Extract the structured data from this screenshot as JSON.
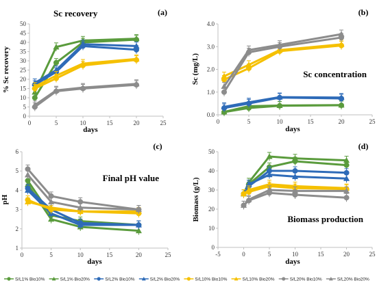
{
  "colors": {
    "green": "#5a9b3c",
    "blue": "#2e6bb8",
    "yellow": "#f5c000",
    "gray": "#8c8c8c",
    "axis": "#bfbfbf"
  },
  "legend": [
    {
      "name": "S/L1% Bio10%",
      "color": "green",
      "marker": "circle"
    },
    {
      "name": "S/L1% Bio20%",
      "color": "green",
      "marker": "triangle"
    },
    {
      "name": "S/L2% Bio10%",
      "color": "blue",
      "marker": "circle"
    },
    {
      "name": "S/L2% Bio20%",
      "color": "blue",
      "marker": "triangle"
    },
    {
      "name": "S/L10% Bio10%",
      "color": "yellow",
      "marker": "circle"
    },
    {
      "name": "S/L10% Bio20%",
      "color": "yellow",
      "marker": "triangle"
    },
    {
      "name": "S/L20% Bio10%",
      "color": "gray",
      "marker": "circle"
    },
    {
      "name": "S/L20% Bio20%",
      "color": "gray",
      "marker": "triangle"
    }
  ],
  "chart_data": [
    {
      "type": "line",
      "panel": "(a)",
      "title": "Sc recovery",
      "xlabel": "days",
      "ylabel": "% Sc recovery",
      "xlim": [
        0,
        25
      ],
      "ylim": [
        0,
        50
      ],
      "xticks": [
        0,
        5,
        10,
        15,
        20,
        25
      ],
      "yticks": [
        0,
        5,
        10,
        15,
        20,
        25,
        30,
        35,
        40,
        45,
        50
      ],
      "x": [
        1,
        5,
        10,
        20
      ],
      "series": [
        {
          "name": "S/L1% Bio10%",
          "values": [
            10,
            29,
            40,
            41.5
          ]
        },
        {
          "name": "S/L1% Bio20%",
          "values": [
            13,
            37.5,
            41,
            42
          ]
        },
        {
          "name": "S/L2% Bio10%",
          "values": [
            17,
            24,
            38,
            36
          ]
        },
        {
          "name": "S/L2% Bio20%",
          "values": [
            18,
            25,
            39,
            38
          ]
        },
        {
          "name": "S/L10% Bio10%",
          "values": [
            15,
            20.5,
            27.5,
            30.5
          ]
        },
        {
          "name": "S/L10% Bio20%",
          "values": [
            16,
            22,
            28.5,
            31
          ]
        },
        {
          "name": "S/L20% Bio10%",
          "values": [
            5,
            13.5,
            15,
            17
          ]
        },
        {
          "name": "S/L20% Bio20%",
          "values": [
            6,
            14,
            15.5,
            17.5
          ]
        }
      ]
    },
    {
      "type": "line",
      "panel": "(b)",
      "title": "Sc concentration",
      "xlabel": "days",
      "ylabel": "Sc (mg/L)",
      "xlim": [
        0,
        25
      ],
      "ylim": [
        0,
        4
      ],
      "xticks": [
        0,
        5,
        10,
        15,
        20,
        25
      ],
      "yticks": [
        "0.0",
        "1.0",
        "2.0",
        "3.0",
        "4.0"
      ],
      "x": [
        1,
        5,
        10,
        20
      ],
      "series": [
        {
          "name": "S/L1% Bio10%",
          "values": [
            0.12,
            0.3,
            0.4,
            0.42
          ]
        },
        {
          "name": "S/L1% Bio20%",
          "values": [
            0.13,
            0.38,
            0.41,
            0.43
          ]
        },
        {
          "name": "S/L2% Bio10%",
          "values": [
            0.3,
            0.5,
            0.76,
            0.72
          ]
        },
        {
          "name": "S/L2% Bio20%",
          "values": [
            0.35,
            0.55,
            0.78,
            0.76
          ]
        },
        {
          "name": "S/L10% Bio10%",
          "values": [
            1.55,
            2.05,
            2.8,
            3.05
          ]
        },
        {
          "name": "S/L10% Bio20%",
          "values": [
            1.7,
            2.2,
            2.85,
            3.1
          ]
        },
        {
          "name": "S/L20% Bio10%",
          "values": [
            1.0,
            2.75,
            3.0,
            3.4
          ]
        },
        {
          "name": "S/L20% Bio20%",
          "values": [
            1.25,
            2.85,
            3.08,
            3.55
          ]
        }
      ]
    },
    {
      "type": "line",
      "panel": "(c)",
      "title": "Final pH value",
      "xlabel": "days",
      "ylabel": "pH",
      "xlim": [
        0,
        25
      ],
      "ylim": [
        1,
        6
      ],
      "xticks": [
        0,
        5,
        10,
        15,
        20,
        25
      ],
      "yticks": [
        1,
        2,
        3,
        4,
        5,
        6
      ],
      "x": [
        1,
        5,
        10,
        20
      ],
      "series": [
        {
          "name": "S/L1% Bio10%",
          "values": [
            4.5,
            2.7,
            2.4,
            2.2
          ]
        },
        {
          "name": "S/L1% Bio20%",
          "values": [
            4.3,
            2.5,
            2.1,
            1.9
          ]
        },
        {
          "name": "S/L2% Bio10%",
          "values": [
            4.1,
            3.0,
            2.3,
            2.2
          ]
        },
        {
          "name": "S/L2% Bio20%",
          "values": [
            4.0,
            2.8,
            2.2,
            2.2
          ]
        },
        {
          "name": "S/L10% Bio10%",
          "values": [
            3.5,
            3.0,
            2.9,
            2.8
          ]
        },
        {
          "name": "S/L10% Bio20%",
          "values": [
            3.4,
            3.1,
            2.9,
            2.9
          ]
        },
        {
          "name": "S/L20% Bio10%",
          "values": [
            5.1,
            3.7,
            3.4,
            3.0
          ]
        },
        {
          "name": "S/L20% Bio20%",
          "values": [
            4.8,
            3.4,
            3.1,
            3.0
          ]
        }
      ]
    },
    {
      "type": "line",
      "panel": "(d)",
      "title": "Biomass production",
      "xlabel": "days",
      "ylabel": "Biomass (g/L)",
      "xlim": [
        -5,
        25
      ],
      "ylim": [
        0,
        50
      ],
      "xticks": [
        -5,
        0,
        5,
        10,
        15,
        20,
        25
      ],
      "yticks": [
        0,
        10,
        20,
        30,
        40,
        50
      ],
      "x": [
        0,
        1,
        5,
        10,
        20
      ],
      "series": [
        {
          "name": "S/L1% Bio10%",
          "values": [
            28,
            33,
            42,
            45,
            43
          ]
        },
        {
          "name": "S/L1% Bio20%",
          "values": [
            28,
            34,
            47.5,
            46.5,
            45.5
          ]
        },
        {
          "name": "S/L2% Bio10%",
          "values": [
            28,
            32,
            40,
            40,
            39
          ]
        },
        {
          "name": "S/L2% Bio20%",
          "values": [
            28,
            33,
            38,
            37,
            36
          ]
        },
        {
          "name": "S/L10% Bio10%",
          "values": [
            28,
            29,
            32,
            31,
            30.5
          ]
        },
        {
          "name": "S/L10% Bio20%",
          "values": [
            28,
            30,
            33,
            32,
            31
          ]
        },
        {
          "name": "S/L20% Bio10%",
          "values": [
            22,
            24.5,
            28.5,
            27.5,
            26
          ]
        },
        {
          "name": "S/L20% Bio20%",
          "values": [
            22,
            25,
            30,
            29.5,
            29.5
          ]
        }
      ]
    }
  ]
}
